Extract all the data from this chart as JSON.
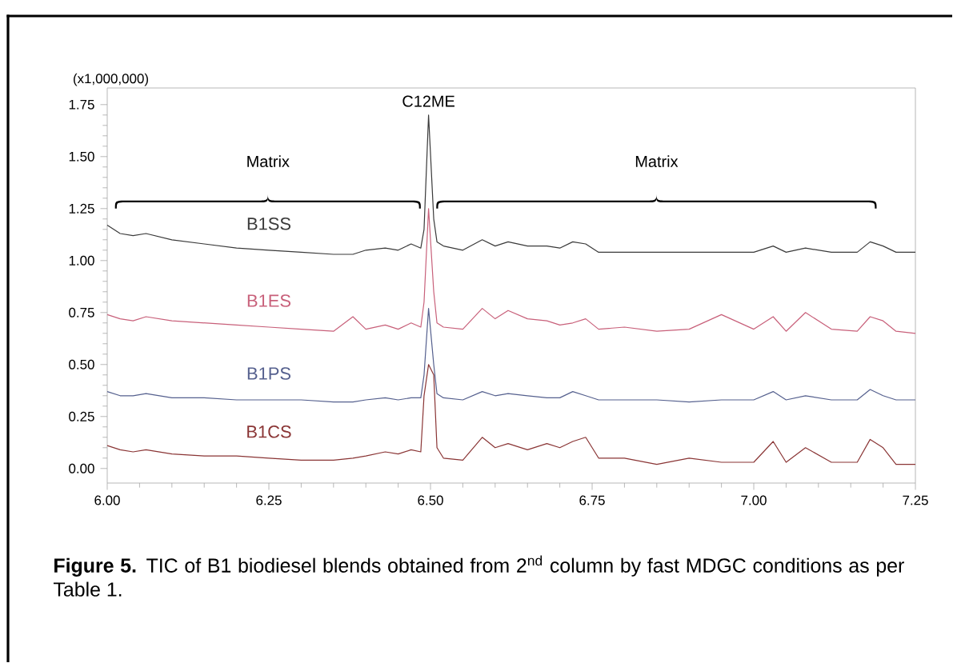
{
  "chart_data": {
    "type": "line",
    "ylabel": "(x1,000,000)",
    "annotations": [
      "C12ME",
      "Matrix",
      "Matrix",
      "**Figure 5.** TIC of B1 biodiesel blends obtained from 2$^{nd}$ column by fast MDGC conditions as per Table 1."
    ],
    "x": [
      6.0,
      6.02,
      6.04,
      6.06,
      6.1,
      6.15,
      6.2,
      6.25,
      6.3,
      6.35,
      6.38,
      6.4,
      6.43,
      6.45,
      6.47,
      6.485,
      6.49,
      6.497,
      6.505,
      6.51,
      6.52,
      6.55,
      6.58,
      6.6,
      6.62,
      6.65,
      6.68,
      6.7,
      6.72,
      6.74,
      6.76,
      6.8,
      6.85,
      6.9,
      6.95,
      7.0,
      7.03,
      7.05,
      7.08,
      7.12,
      7.16,
      7.18,
      7.2,
      7.22,
      7.25
    ],
    "series": [
      {
        "name": "B1SS",
        "color": "#3a3a3a",
        "values": [
          1.17,
          1.13,
          1.12,
          1.13,
          1.1,
          1.08,
          1.06,
          1.05,
          1.04,
          1.03,
          1.03,
          1.05,
          1.06,
          1.05,
          1.08,
          1.06,
          1.15,
          1.7,
          1.2,
          1.09,
          1.07,
          1.05,
          1.1,
          1.07,
          1.09,
          1.07,
          1.07,
          1.06,
          1.09,
          1.08,
          1.04,
          1.04,
          1.04,
          1.04,
          1.04,
          1.04,
          1.07,
          1.04,
          1.06,
          1.04,
          1.04,
          1.09,
          1.07,
          1.04,
          1.04
        ]
      },
      {
        "name": "B1ES",
        "color": "#c8607a",
        "values": [
          0.74,
          0.72,
          0.71,
          0.73,
          0.71,
          0.7,
          0.69,
          0.68,
          0.67,
          0.66,
          0.73,
          0.67,
          0.69,
          0.67,
          0.7,
          0.68,
          0.8,
          1.25,
          0.85,
          0.7,
          0.68,
          0.67,
          0.77,
          0.72,
          0.76,
          0.72,
          0.71,
          0.69,
          0.7,
          0.72,
          0.67,
          0.68,
          0.66,
          0.67,
          0.74,
          0.67,
          0.73,
          0.66,
          0.75,
          0.67,
          0.66,
          0.73,
          0.71,
          0.66,
          0.65
        ]
      },
      {
        "name": "B1PS",
        "color": "#55608e",
        "values": [
          0.37,
          0.35,
          0.35,
          0.36,
          0.34,
          0.34,
          0.33,
          0.33,
          0.33,
          0.32,
          0.32,
          0.33,
          0.34,
          0.33,
          0.34,
          0.34,
          0.45,
          0.77,
          0.5,
          0.36,
          0.34,
          0.33,
          0.37,
          0.35,
          0.36,
          0.35,
          0.34,
          0.34,
          0.37,
          0.35,
          0.33,
          0.33,
          0.33,
          0.32,
          0.33,
          0.33,
          0.37,
          0.33,
          0.35,
          0.33,
          0.33,
          0.38,
          0.35,
          0.33,
          0.33
        ]
      },
      {
        "name": "B1CS",
        "color": "#8a3535",
        "values": [
          0.11,
          0.09,
          0.08,
          0.09,
          0.07,
          0.06,
          0.06,
          0.05,
          0.04,
          0.04,
          0.05,
          0.06,
          0.08,
          0.07,
          0.09,
          0.08,
          0.35,
          0.5,
          0.45,
          0.1,
          0.05,
          0.04,
          0.15,
          0.1,
          0.12,
          0.09,
          0.12,
          0.1,
          0.13,
          0.15,
          0.05,
          0.05,
          0.02,
          0.05,
          0.03,
          0.03,
          0.13,
          0.03,
          0.1,
          0.03,
          0.03,
          0.14,
          0.1,
          0.02,
          0.02
        ]
      }
    ],
    "xlim": [
      6.0,
      7.25
    ],
    "ylim": [
      -0.07,
      1.83
    ],
    "xticks": [
      {
        "value": 6.0,
        "label": "6.00"
      },
      {
        "value": 6.25,
        "label": "6.25"
      },
      {
        "value": 6.5,
        "label": "6.50"
      },
      {
        "value": 6.75,
        "label": "6.75"
      },
      {
        "value": 7.0,
        "label": "7.00"
      },
      {
        "value": 7.25,
        "label": "7.25"
      }
    ],
    "yticks": [
      {
        "value": 0.0,
        "label": "0.00"
      },
      {
        "value": 0.25,
        "label": "0.25"
      },
      {
        "value": 0.5,
        "label": "0.50"
      },
      {
        "value": 0.75,
        "label": "0.75"
      },
      {
        "value": 1.0,
        "label": "1.00"
      },
      {
        "value": 1.25,
        "label": "1.25"
      },
      {
        "value": 1.5,
        "label": "1.50"
      },
      {
        "value": 1.75,
        "label": "1.75"
      }
    ],
    "grid": false,
    "marker": "none",
    "line_style": "solid"
  }
}
